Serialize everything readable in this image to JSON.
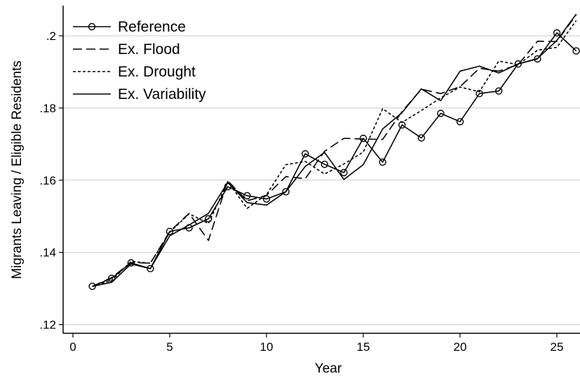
{
  "chart_data": {
    "type": "line",
    "title": "",
    "xlabel": "Year",
    "ylabel": "Migrants Leaving / Eligible Residents",
    "xlim": [
      0,
      26
    ],
    "ylim": [
      0.12,
      0.2
    ],
    "x_ticks": [
      0,
      5,
      10,
      15,
      20,
      25
    ],
    "x_tick_labels": [
      "0",
      "5",
      "10",
      "15",
      "20",
      "25"
    ],
    "y_ticks": [
      0.12,
      0.14,
      0.16,
      0.18,
      0.2
    ],
    "y_tick_labels": [
      ".12",
      ".14",
      ".16",
      ".18",
      ".2"
    ],
    "grid": "horizontal",
    "legend_position": "top-left",
    "x": [
      1,
      2,
      3,
      4,
      5,
      6,
      7,
      8,
      9,
      10,
      11,
      12,
      13,
      14,
      15,
      16,
      17,
      18,
      19,
      20,
      21,
      22,
      23,
      24,
      25,
      26
    ],
    "series": [
      {
        "name": "Reference",
        "style": "solid-marker",
        "color": "#000000",
        "values": [
          0.1306,
          0.1328,
          0.1371,
          0.1355,
          0.1458,
          0.1468,
          0.1493,
          0.1582,
          0.1557,
          0.1548,
          0.1568,
          0.1673,
          0.1644,
          0.1621,
          0.1716,
          0.165,
          0.1753,
          0.1717,
          0.1785,
          0.1762,
          0.184,
          0.1847,
          0.1922,
          0.1936,
          0.2008,
          0.1958
        ]
      },
      {
        "name": "Ex. Flood",
        "style": "dashed",
        "color": "#000000",
        "values": [
          0.1306,
          0.133,
          0.1372,
          0.137,
          0.1458,
          0.1508,
          0.1433,
          0.1598,
          0.1543,
          0.1558,
          0.161,
          0.1604,
          0.168,
          0.1716,
          0.1714,
          0.1713,
          0.179,
          0.1852,
          0.184,
          0.1859,
          0.191,
          0.1902,
          0.192,
          0.1985,
          0.1984,
          0.2058
        ]
      },
      {
        "name": "Ex. Drought",
        "style": "dotted",
        "color": "#000000",
        "values": [
          0.1306,
          0.1322,
          0.1375,
          0.137,
          0.1455,
          0.1507,
          0.148,
          0.1596,
          0.1522,
          0.156,
          0.1643,
          0.1652,
          0.1617,
          0.1645,
          0.1678,
          0.1798,
          0.176,
          0.1793,
          0.1828,
          0.1858,
          0.1845,
          0.193,
          0.192,
          0.196,
          0.1968,
          0.2042
        ]
      },
      {
        "name": "Ex. Variability",
        "style": "solid",
        "color": "#000000",
        "values": [
          0.1306,
          0.1317,
          0.1368,
          0.1355,
          0.1446,
          0.1476,
          0.1508,
          0.1594,
          0.1538,
          0.1531,
          0.1568,
          0.1638,
          0.1677,
          0.1602,
          0.1643,
          0.1742,
          0.1787,
          0.1853,
          0.182,
          0.1902,
          0.1916,
          0.1897,
          0.1922,
          0.1937,
          0.1987,
          0.206
        ]
      }
    ]
  }
}
